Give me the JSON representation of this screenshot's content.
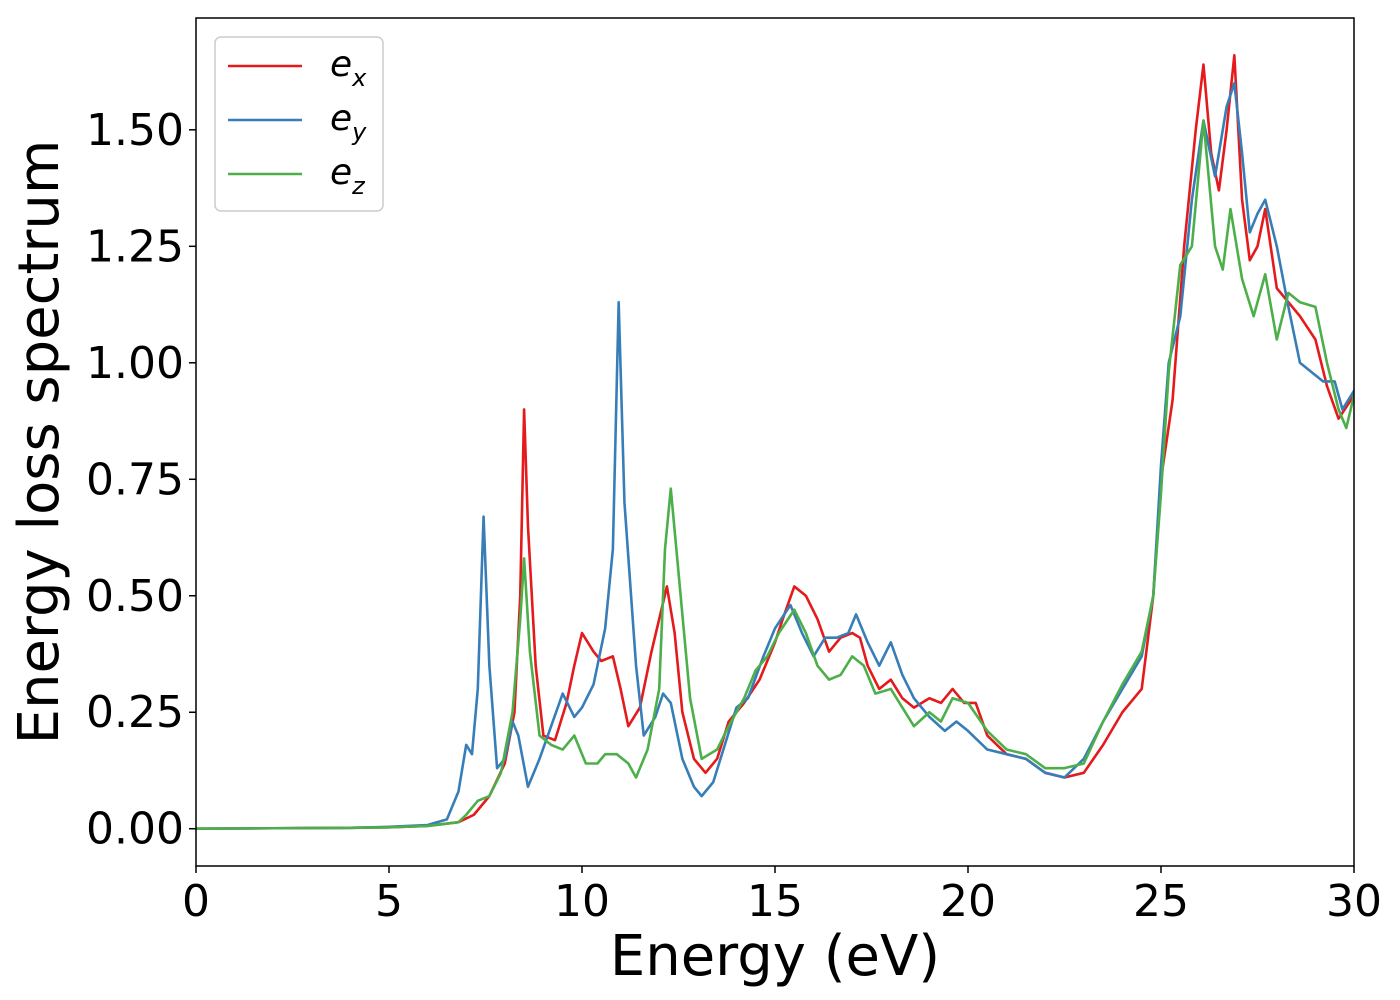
{
  "chart_data": {
    "type": "line",
    "title": "",
    "xlabel": "Energy (eV)",
    "ylabel": "Energy loss spectrum",
    "xlim": [
      0,
      30
    ],
    "ylim": [
      -0.08,
      1.74
    ],
    "xticks": [
      0,
      5,
      10,
      15,
      20,
      25,
      30
    ],
    "xtick_labels": [
      "0",
      "5",
      "10",
      "15",
      "20",
      "25",
      "30"
    ],
    "yticks": [
      0,
      0.25,
      0.5,
      0.75,
      1.0,
      1.25,
      1.5
    ],
    "ytick_labels": [
      "0.00",
      "0.25",
      "0.50",
      "0.75",
      "1.00",
      "1.25",
      "1.50"
    ],
    "grid": false,
    "legend_position": "top-left",
    "series": [
      {
        "name": "e_x",
        "label_main": "e",
        "label_sub": "x",
        "color": "#e41a1c",
        "points": [
          [
            0,
            0
          ],
          [
            2,
            0.001
          ],
          [
            4,
            0.002
          ],
          [
            5,
            0.003
          ],
          [
            6,
            0.006
          ],
          [
            6.8,
            0.014
          ],
          [
            7.2,
            0.03
          ],
          [
            7.6,
            0.07
          ],
          [
            8.0,
            0.14
          ],
          [
            8.25,
            0.25
          ],
          [
            8.4,
            0.5
          ],
          [
            8.5,
            0.9
          ],
          [
            8.6,
            0.65
          ],
          [
            8.8,
            0.35
          ],
          [
            9.0,
            0.2
          ],
          [
            9.3,
            0.19
          ],
          [
            9.6,
            0.27
          ],
          [
            9.8,
            0.35
          ],
          [
            10.0,
            0.42
          ],
          [
            10.3,
            0.38
          ],
          [
            10.5,
            0.36
          ],
          [
            10.8,
            0.37
          ],
          [
            11.0,
            0.3
          ],
          [
            11.2,
            0.22
          ],
          [
            11.5,
            0.26
          ],
          [
            11.8,
            0.38
          ],
          [
            12.0,
            0.45
          ],
          [
            12.2,
            0.52
          ],
          [
            12.4,
            0.42
          ],
          [
            12.6,
            0.25
          ],
          [
            12.9,
            0.15
          ],
          [
            13.2,
            0.12
          ],
          [
            13.5,
            0.15
          ],
          [
            13.8,
            0.23
          ],
          [
            14.2,
            0.27
          ],
          [
            14.6,
            0.32
          ],
          [
            15.0,
            0.4
          ],
          [
            15.2,
            0.45
          ],
          [
            15.5,
            0.52
          ],
          [
            15.8,
            0.5
          ],
          [
            16.1,
            0.45
          ],
          [
            16.4,
            0.38
          ],
          [
            16.7,
            0.41
          ],
          [
            17.0,
            0.42
          ],
          [
            17.2,
            0.41
          ],
          [
            17.4,
            0.35
          ],
          [
            17.7,
            0.3
          ],
          [
            18.0,
            0.32
          ],
          [
            18.3,
            0.28
          ],
          [
            18.6,
            0.26
          ],
          [
            19.0,
            0.28
          ],
          [
            19.3,
            0.27
          ],
          [
            19.6,
            0.3
          ],
          [
            19.9,
            0.27
          ],
          [
            20.2,
            0.27
          ],
          [
            20.5,
            0.2
          ],
          [
            21.0,
            0.16
          ],
          [
            21.5,
            0.15
          ],
          [
            22.0,
            0.12
          ],
          [
            22.5,
            0.11
          ],
          [
            23.0,
            0.12
          ],
          [
            23.5,
            0.18
          ],
          [
            24.0,
            0.25
          ],
          [
            24.5,
            0.3
          ],
          [
            24.8,
            0.5
          ],
          [
            25.0,
            0.75
          ],
          [
            25.3,
            0.92
          ],
          [
            25.6,
            1.25
          ],
          [
            25.9,
            1.5
          ],
          [
            26.1,
            1.64
          ],
          [
            26.3,
            1.45
          ],
          [
            26.5,
            1.37
          ],
          [
            26.7,
            1.5
          ],
          [
            26.9,
            1.66
          ],
          [
            27.1,
            1.35
          ],
          [
            27.3,
            1.22
          ],
          [
            27.5,
            1.25
          ],
          [
            27.7,
            1.33
          ],
          [
            28.0,
            1.16
          ],
          [
            28.3,
            1.13
          ],
          [
            28.6,
            1.1
          ],
          [
            29.0,
            1.05
          ],
          [
            29.3,
            0.95
          ],
          [
            29.6,
            0.88
          ],
          [
            30.0,
            0.93
          ]
        ]
      },
      {
        "name": "e_y",
        "label_main": "e",
        "label_sub": "y",
        "color": "#377eb8",
        "points": [
          [
            0,
            0
          ],
          [
            2,
            0.001
          ],
          [
            4,
            0.002
          ],
          [
            5,
            0.004
          ],
          [
            6,
            0.008
          ],
          [
            6.5,
            0.02
          ],
          [
            6.8,
            0.08
          ],
          [
            7.0,
            0.18
          ],
          [
            7.15,
            0.16
          ],
          [
            7.3,
            0.3
          ],
          [
            7.45,
            0.67
          ],
          [
            7.6,
            0.35
          ],
          [
            7.8,
            0.13
          ],
          [
            8.0,
            0.15
          ],
          [
            8.2,
            0.23
          ],
          [
            8.35,
            0.2
          ],
          [
            8.6,
            0.09
          ],
          [
            8.9,
            0.15
          ],
          [
            9.2,
            0.22
          ],
          [
            9.5,
            0.29
          ],
          [
            9.8,
            0.24
          ],
          [
            10.0,
            0.26
          ],
          [
            10.3,
            0.31
          ],
          [
            10.6,
            0.43
          ],
          [
            10.8,
            0.6
          ],
          [
            10.95,
            1.13
          ],
          [
            11.1,
            0.7
          ],
          [
            11.4,
            0.35
          ],
          [
            11.6,
            0.2
          ],
          [
            11.9,
            0.24
          ],
          [
            12.1,
            0.29
          ],
          [
            12.3,
            0.27
          ],
          [
            12.6,
            0.15
          ],
          [
            12.9,
            0.09
          ],
          [
            13.1,
            0.07
          ],
          [
            13.4,
            0.1
          ],
          [
            13.7,
            0.18
          ],
          [
            14.0,
            0.26
          ],
          [
            14.3,
            0.28
          ],
          [
            14.7,
            0.37
          ],
          [
            15.0,
            0.43
          ],
          [
            15.4,
            0.48
          ],
          [
            15.7,
            0.42
          ],
          [
            16.0,
            0.37
          ],
          [
            16.3,
            0.41
          ],
          [
            16.6,
            0.41
          ],
          [
            16.9,
            0.42
          ],
          [
            17.1,
            0.46
          ],
          [
            17.4,
            0.4
          ],
          [
            17.7,
            0.35
          ],
          [
            18.0,
            0.4
          ],
          [
            18.3,
            0.33
          ],
          [
            18.6,
            0.28
          ],
          [
            19.0,
            0.24
          ],
          [
            19.4,
            0.21
          ],
          [
            19.7,
            0.23
          ],
          [
            20.0,
            0.21
          ],
          [
            20.5,
            0.17
          ],
          [
            21.0,
            0.16
          ],
          [
            21.5,
            0.15
          ],
          [
            22.0,
            0.12
          ],
          [
            22.5,
            0.11
          ],
          [
            23.0,
            0.15
          ],
          [
            23.5,
            0.23
          ],
          [
            24.0,
            0.3
          ],
          [
            24.5,
            0.37
          ],
          [
            24.8,
            0.5
          ],
          [
            25.0,
            0.78
          ],
          [
            25.2,
            1.0
          ],
          [
            25.5,
            1.1
          ],
          [
            25.8,
            1.35
          ],
          [
            26.1,
            1.52
          ],
          [
            26.4,
            1.4
          ],
          [
            26.7,
            1.55
          ],
          [
            26.9,
            1.6
          ],
          [
            27.1,
            1.45
          ],
          [
            27.3,
            1.28
          ],
          [
            27.5,
            1.32
          ],
          [
            27.7,
            1.35
          ],
          [
            28.0,
            1.25
          ],
          [
            28.3,
            1.12
          ],
          [
            28.6,
            1.0
          ],
          [
            28.9,
            0.98
          ],
          [
            29.2,
            0.96
          ],
          [
            29.5,
            0.96
          ],
          [
            29.7,
            0.9
          ],
          [
            30.0,
            0.94
          ]
        ]
      },
      {
        "name": "e_z",
        "label_main": "e",
        "label_sub": "z",
        "color": "#4daf4a",
        "points": [
          [
            0,
            0
          ],
          [
            2,
            0.001
          ],
          [
            4,
            0.002
          ],
          [
            5,
            0.003
          ],
          [
            6,
            0.006
          ],
          [
            6.8,
            0.014
          ],
          [
            7.0,
            0.03
          ],
          [
            7.3,
            0.06
          ],
          [
            7.6,
            0.07
          ],
          [
            7.9,
            0.12
          ],
          [
            8.2,
            0.25
          ],
          [
            8.4,
            0.45
          ],
          [
            8.5,
            0.58
          ],
          [
            8.65,
            0.38
          ],
          [
            8.9,
            0.2
          ],
          [
            9.2,
            0.18
          ],
          [
            9.5,
            0.17
          ],
          [
            9.8,
            0.2
          ],
          [
            10.1,
            0.14
          ],
          [
            10.4,
            0.14
          ],
          [
            10.6,
            0.16
          ],
          [
            10.9,
            0.16
          ],
          [
            11.2,
            0.14
          ],
          [
            11.4,
            0.11
          ],
          [
            11.7,
            0.17
          ],
          [
            12.0,
            0.3
          ],
          [
            12.15,
            0.6
          ],
          [
            12.3,
            0.73
          ],
          [
            12.5,
            0.55
          ],
          [
            12.8,
            0.28
          ],
          [
            13.1,
            0.15
          ],
          [
            13.5,
            0.17
          ],
          [
            13.8,
            0.22
          ],
          [
            14.2,
            0.28
          ],
          [
            14.5,
            0.34
          ],
          [
            14.8,
            0.37
          ],
          [
            15.1,
            0.42
          ],
          [
            15.5,
            0.47
          ],
          [
            15.8,
            0.42
          ],
          [
            16.1,
            0.35
          ],
          [
            16.4,
            0.32
          ],
          [
            16.7,
            0.33
          ],
          [
            17.0,
            0.37
          ],
          [
            17.3,
            0.35
          ],
          [
            17.6,
            0.29
          ],
          [
            18.0,
            0.3
          ],
          [
            18.3,
            0.26
          ],
          [
            18.6,
            0.22
          ],
          [
            19.0,
            0.25
          ],
          [
            19.3,
            0.23
          ],
          [
            19.6,
            0.28
          ],
          [
            20.0,
            0.27
          ],
          [
            20.5,
            0.21
          ],
          [
            21.0,
            0.17
          ],
          [
            21.5,
            0.16
          ],
          [
            22.0,
            0.13
          ],
          [
            22.5,
            0.13
          ],
          [
            23.0,
            0.14
          ],
          [
            23.5,
            0.23
          ],
          [
            24.0,
            0.31
          ],
          [
            24.5,
            0.38
          ],
          [
            24.8,
            0.5
          ],
          [
            25.0,
            0.72
          ],
          [
            25.2,
            0.98
          ],
          [
            25.5,
            1.21
          ],
          [
            25.8,
            1.25
          ],
          [
            26.1,
            1.52
          ],
          [
            26.4,
            1.25
          ],
          [
            26.6,
            1.2
          ],
          [
            26.8,
            1.33
          ],
          [
            27.1,
            1.18
          ],
          [
            27.4,
            1.1
          ],
          [
            27.7,
            1.19
          ],
          [
            28.0,
            1.05
          ],
          [
            28.3,
            1.15
          ],
          [
            28.6,
            1.13
          ],
          [
            29.0,
            1.12
          ],
          [
            29.3,
            1.0
          ],
          [
            29.6,
            0.9
          ],
          [
            29.8,
            0.86
          ],
          [
            30.0,
            0.93
          ]
        ]
      }
    ]
  }
}
